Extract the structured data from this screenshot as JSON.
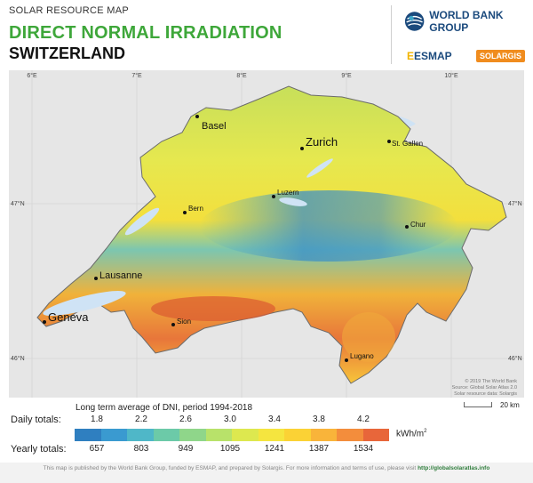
{
  "header": {
    "subtitle": "SOLAR RESOURCE MAP",
    "title": "DIRECT NORMAL IRRADIATION",
    "country": "SWITZERLAND"
  },
  "logos": {
    "world_bank": "WORLD BANK GROUP",
    "esmap_e": "E",
    "esmap_rest": "ESMAP",
    "solargis": "SOLARGIS"
  },
  "map": {
    "longitude_labels": [
      "6°E",
      "7°E",
      "8°E",
      "9°E",
      "10°E"
    ],
    "latitude_labels": [
      "47°N",
      "46°N"
    ],
    "cities": [
      {
        "name": "Basel",
        "size": "mid"
      },
      {
        "name": "Zurich",
        "size": "big"
      },
      {
        "name": "St. Gallen",
        "size": "sm"
      },
      {
        "name": "Luzern",
        "size": "sm"
      },
      {
        "name": "Bern",
        "size": "sm"
      },
      {
        "name": "Chur",
        "size": "sm"
      },
      {
        "name": "Lausanne",
        "size": "mid"
      },
      {
        "name": "Geneva",
        "size": "big"
      },
      {
        "name": "Sion",
        "size": "sm"
      },
      {
        "name": "Lugano",
        "size": "sm"
      }
    ],
    "credits": [
      "© 2019 The World Bank",
      "Source: Global Solar Atlas 2.0",
      "Solar resource data: Solargis"
    ],
    "scale_label": "20 km"
  },
  "legend": {
    "title": "Long term average of DNI, period 1994-2018",
    "daily_label": "Daily totals:",
    "yearly_label": "Yearly totals:",
    "daily_ticks": [
      "1.8",
      "2.2",
      "2.6",
      "3.0",
      "3.4",
      "3.8",
      "4.2"
    ],
    "yearly_ticks": [
      "657",
      "803",
      "949",
      "1095",
      "1241",
      "1387",
      "1534"
    ],
    "unit": "kWh/m",
    "unit_sup": "2",
    "colors": [
      "#2f7fc0",
      "#3a9ad0",
      "#4fb7c8",
      "#6ccaa8",
      "#8fd68a",
      "#b8e26a",
      "#dde84f",
      "#f5e53f",
      "#fbd235",
      "#f9b43a",
      "#f38d3c",
      "#e8663a"
    ]
  },
  "footer": {
    "text": "This map is published by the World Bank Group, funded by ESMAP, and prepared by Solargis. For more information and terms of use, please visit",
    "link": "http://globalsolaratlas.info"
  }
}
